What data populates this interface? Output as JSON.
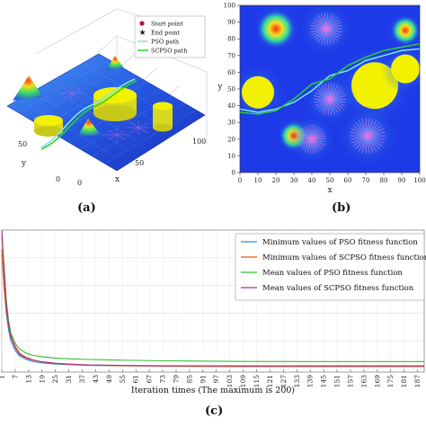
{
  "figure": {
    "label_a": "(a)",
    "label_b": "(b)",
    "label_c": "(c)"
  },
  "colors": {
    "pso": "#2f8ed8",
    "scpso": "#e05a1a",
    "mean_pso": "#2fc02f",
    "mean_scpso": "#b0307a",
    "surface_dark": "#1b2fd8",
    "obstacle": "#f2f200",
    "start_marker": "#c0143c",
    "end_marker": "#202020",
    "pso_path_3d": "#7fe8f0",
    "scpso_path_3d": "#2fd02f"
  },
  "panel_a": {
    "legend": [
      "Start point",
      "End point",
      "PSO path",
      "SCPSO path"
    ],
    "axis_x": {
      "label": "x",
      "ticks": [
        "0",
        "50",
        "100"
      ]
    },
    "axis_y": {
      "label": "y",
      "ticks": [
        "0",
        "50"
      ]
    }
  },
  "chart_data": [
    {
      "type": "heatmap",
      "panel": "b",
      "xlabel": "x",
      "ylabel": "y",
      "xlim": [
        0,
        100
      ],
      "ylim": [
        0,
        100
      ],
      "xticks": [
        0,
        10,
        20,
        30,
        40,
        50,
        60,
        70,
        80,
        90,
        100
      ],
      "yticks": [
        0,
        10,
        20,
        30,
        40,
        50,
        60,
        70,
        80,
        90,
        100
      ],
      "obstacles": [
        {
          "shape": "cylinder",
          "cx": 10,
          "cy": 48,
          "r": 9
        },
        {
          "shape": "cylinder",
          "cx": 75,
          "cy": 52,
          "r": 13
        },
        {
          "shape": "cylinder",
          "cx": 92,
          "cy": 62,
          "r": 8
        },
        {
          "shape": "cone",
          "cx": 20,
          "cy": 86,
          "r": 8
        },
        {
          "shape": "cone",
          "cx": 92,
          "cy": 85,
          "r": 6
        },
        {
          "shape": "cone",
          "cx": 30,
          "cy": 22,
          "r": 6
        },
        {
          "shape": "spike",
          "cx": 48,
          "cy": 86,
          "r": 9
        },
        {
          "shape": "spike",
          "cx": 50,
          "cy": 44,
          "r": 9
        },
        {
          "shape": "spike",
          "cx": 71,
          "cy": 22,
          "r": 10
        },
        {
          "shape": "spike",
          "cx": 40,
          "cy": 20,
          "r": 8
        }
      ],
      "paths": [
        {
          "name": "PSO path",
          "x": [
            0,
            10,
            20,
            30,
            40,
            50,
            60,
            70,
            80,
            90,
            100
          ],
          "y": [
            38,
            36,
            38,
            42,
            49,
            58,
            61,
            67,
            70,
            73,
            74
          ]
        },
        {
          "name": "SCPSO path",
          "x": [
            0,
            10,
            20,
            30,
            40,
            50,
            60,
            70,
            80,
            90,
            100
          ],
          "y": [
            36,
            35,
            37,
            44,
            53,
            56,
            64,
            69,
            73,
            75,
            77
          ]
        }
      ]
    },
    {
      "type": "line",
      "panel": "c",
      "xlabel": "Iteration times (The maximum is 200)",
      "ylabel": "",
      "xlim": [
        1,
        190
      ],
      "x_ticks": [
        1,
        7,
        13,
        19,
        25,
        31,
        37,
        43,
        49,
        55,
        61,
        67,
        73,
        79,
        85,
        91,
        97,
        103,
        109,
        115,
        121,
        127,
        133,
        139,
        145,
        151,
        157,
        163,
        169,
        175,
        181,
        187
      ],
      "ylim": [
        0,
        1
      ],
      "grid": true,
      "legend_position": "top-right",
      "series": [
        {
          "name": "Minimum values of PSO fitness function",
          "color_key": "pso",
          "x": [
            1,
            2,
            3,
            4,
            5,
            7,
            9,
            12,
            15,
            19,
            25,
            31,
            40,
            55,
            70,
            90,
            110,
            140,
            170,
            190
          ],
          "y": [
            0.83,
            0.6,
            0.4,
            0.28,
            0.2,
            0.13,
            0.09,
            0.065,
            0.05,
            0.04,
            0.032,
            0.028,
            0.022,
            0.02,
            0.018,
            0.017,
            0.016,
            0.016,
            0.016,
            0.016
          ]
        },
        {
          "name": "Minimum values of SCPSO fitness function",
          "color_key": "scpso",
          "x": [
            1,
            2,
            3,
            4,
            5,
            7,
            9,
            12,
            15,
            19,
            25,
            31,
            40,
            55,
            70,
            90,
            110,
            140,
            170,
            190
          ],
          "y": [
            0.86,
            0.58,
            0.42,
            0.31,
            0.24,
            0.16,
            0.11,
            0.08,
            0.062,
            0.048,
            0.036,
            0.03,
            0.024,
            0.02,
            0.017,
            0.015,
            0.014,
            0.014,
            0.014,
            0.014
          ]
        },
        {
          "name": "Mean values of PSO fitness function",
          "color_key": "mean_pso",
          "x": [
            1,
            2,
            3,
            4,
            5,
            7,
            9,
            12,
            15,
            19,
            25,
            31,
            40,
            55,
            70,
            90,
            110,
            140,
            170,
            190
          ],
          "y": [
            0.96,
            0.75,
            0.5,
            0.35,
            0.26,
            0.18,
            0.14,
            0.11,
            0.095,
            0.085,
            0.075,
            0.07,
            0.065,
            0.06,
            0.056,
            0.053,
            0.051,
            0.05,
            0.05,
            0.05
          ]
        },
        {
          "name": "Mean values of SCPSO fitness function",
          "color_key": "mean_scpso",
          "x": [
            1,
            2,
            3,
            4,
            5,
            7,
            9,
            12,
            15,
            19,
            25,
            31,
            40,
            55,
            70,
            90,
            110,
            140,
            170,
            190
          ],
          "y": [
            1.0,
            0.72,
            0.46,
            0.32,
            0.23,
            0.15,
            0.1,
            0.075,
            0.06,
            0.048,
            0.038,
            0.032,
            0.026,
            0.022,
            0.02,
            0.019,
            0.019,
            0.019,
            0.019,
            0.019
          ]
        }
      ]
    }
  ]
}
